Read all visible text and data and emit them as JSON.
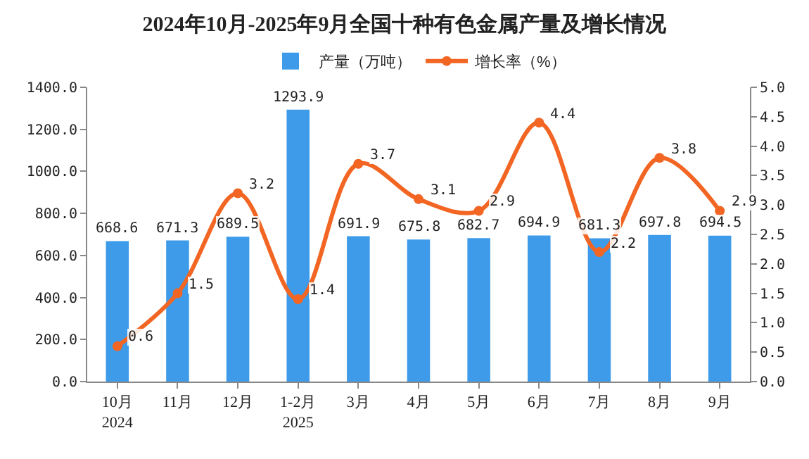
{
  "chart_data": {
    "type": "bar",
    "title": "2024年10月-2025年9月全国十种有色金属产量及增长情况",
    "categories": [
      "10月\n2024",
      "11月",
      "12月",
      "1-2月\n2025",
      "3月",
      "4月",
      "5月",
      "6月",
      "7月",
      "8月",
      "9月"
    ],
    "series": [
      {
        "name": "产量（万吨）",
        "color": "#3d9bea",
        "values": [
          668.6,
          671.3,
          689.5,
          1293.9,
          691.9,
          675.8,
          682.7,
          694.9,
          681.3,
          697.8,
          694.5
        ]
      },
      {
        "name": "增长率（%）",
        "type": "line",
        "axis": "y2",
        "color": "#f26522",
        "marker": "circle",
        "values": [
          0.6,
          1.5,
          3.2,
          1.4,
          3.7,
          3.1,
          2.9,
          4.4,
          2.2,
          3.8,
          2.9
        ]
      }
    ],
    "ylim": [
      0,
      1400
    ],
    "yticks": [
      {
        "value": 0,
        "label": "0.0"
      },
      {
        "value": 200,
        "label": "200.0"
      },
      {
        "value": 400,
        "label": "400.0"
      },
      {
        "value": 600,
        "label": "600.0"
      },
      {
        "value": 800,
        "label": "800.0"
      },
      {
        "value": 1000,
        "label": "1000.0"
      },
      {
        "value": 1200,
        "label": "1200.0"
      },
      {
        "value": 1400,
        "label": "1400.0"
      }
    ],
    "y2lim": [
      0,
      5
    ],
    "y2ticks": [
      {
        "value": 0,
        "label": "0.0"
      },
      {
        "value": 0.5,
        "label": "0.5"
      },
      {
        "value": 1,
        "label": "1.0"
      },
      {
        "value": 1.5,
        "label": "1.5"
      },
      {
        "value": 2,
        "label": "2.0"
      },
      {
        "value": 2.5,
        "label": "2.5"
      },
      {
        "value": 3,
        "label": "3.0"
      },
      {
        "value": 3.5,
        "label": "3.5"
      },
      {
        "value": 4,
        "label": "4.0"
      },
      {
        "value": 4.5,
        "label": "4.5"
      },
      {
        "value": 5,
        "label": "5.0"
      }
    ],
    "data_labels": true,
    "legend": "top",
    "grid": false
  }
}
